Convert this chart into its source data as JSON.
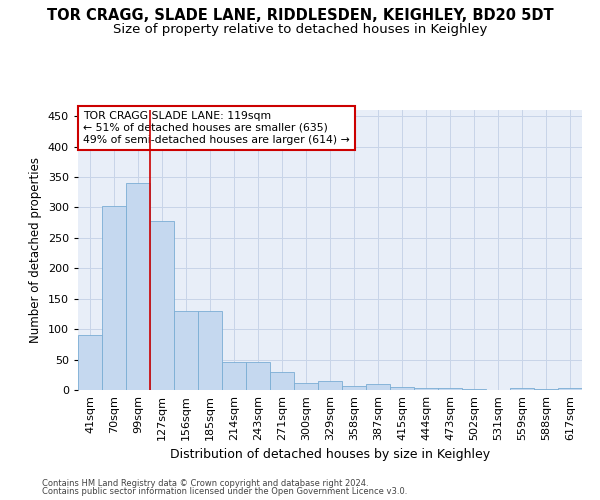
{
  "title": "TOR CRAGG, SLADE LANE, RIDDLESDEN, KEIGHLEY, BD20 5DT",
  "subtitle": "Size of property relative to detached houses in Keighley",
  "xlabel": "Distribution of detached houses by size in Keighley",
  "ylabel": "Number of detached properties",
  "categories": [
    "41sqm",
    "70sqm",
    "99sqm",
    "127sqm",
    "156sqm",
    "185sqm",
    "214sqm",
    "243sqm",
    "271sqm",
    "300sqm",
    "329sqm",
    "358sqm",
    "387sqm",
    "415sqm",
    "444sqm",
    "473sqm",
    "502sqm",
    "531sqm",
    "559sqm",
    "588sqm",
    "617sqm"
  ],
  "values": [
    90,
    303,
    340,
    278,
    130,
    130,
    46,
    46,
    30,
    12,
    14,
    7,
    10,
    5,
    4,
    3,
    1,
    0,
    4,
    1,
    3
  ],
  "bar_color": "#c5d8ef",
  "bar_edge_color": "#7aadd4",
  "vline_x": 2.5,
  "vline_color": "#cc0000",
  "annotation_text": "TOR CRAGG SLADE LANE: 119sqm\n← 51% of detached houses are smaller (635)\n49% of semi-detached houses are larger (614) →",
  "annotation_box_color": "#ffffff",
  "annotation_box_edge": "#cc0000",
  "ylim": [
    0,
    460
  ],
  "yticks": [
    0,
    50,
    100,
    150,
    200,
    250,
    300,
    350,
    400,
    450
  ],
  "grid_color": "#c8d4e8",
  "background_color": "#e8eef8",
  "footer1": "Contains HM Land Registry data © Crown copyright and database right 2024.",
  "footer2": "Contains public sector information licensed under the Open Government Licence v3.0.",
  "title_fontsize": 10.5,
  "subtitle_fontsize": 9.5,
  "xlabel_fontsize": 9,
  "ylabel_fontsize": 8.5,
  "tick_fontsize": 8
}
